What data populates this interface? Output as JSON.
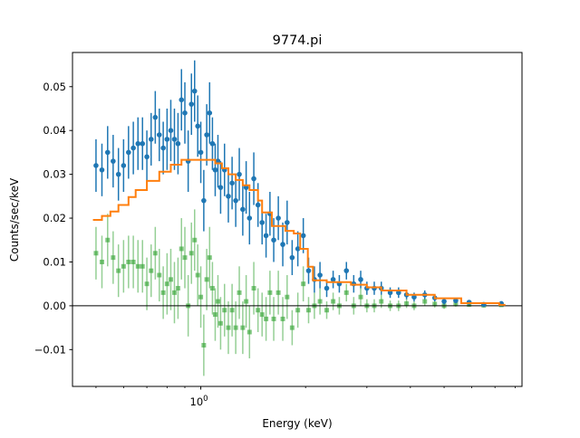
{
  "chart_data": {
    "type": "scatter",
    "title": "9774.pi",
    "xlabel": "Energy (keV)",
    "ylabel": "Counts/sec/keV",
    "xscale": "log",
    "xlim": [
      0.428,
      8.37
    ],
    "ylim": [
      -0.0184,
      0.0578
    ],
    "grid": false,
    "legend": "none",
    "x_tick_labels": [
      {
        "value": 1,
        "label": "10",
        "exp": "0"
      }
    ],
    "x_minor_ticks": [
      0.5,
      0.6,
      0.7,
      0.8,
      0.9,
      2,
      3,
      4,
      5,
      6,
      7,
      8
    ],
    "y_ticks": [
      {
        "value": 0.05,
        "label": "0.05"
      },
      {
        "value": 0.04,
        "label": "0.04"
      },
      {
        "value": 0.03,
        "label": "0.03"
      },
      {
        "value": 0.02,
        "label": "0.02"
      },
      {
        "value": 0.01,
        "label": "0.01"
      },
      {
        "value": 0.0,
        "label": "0.00"
      },
      {
        "value": -0.01,
        "label": "−0.01"
      }
    ],
    "zero_line": 0,
    "colors": {
      "data": "#1f77b4",
      "model": "#ff7f0e",
      "residual": "#2ca02c"
    },
    "columns": [
      "energy",
      "rate",
      "error",
      "residual"
    ],
    "data": [
      [
        0.5,
        0.032,
        0.006,
        0.012
      ],
      [
        0.52,
        0.031,
        0.006,
        0.01
      ],
      [
        0.54,
        0.035,
        0.006,
        0.015
      ],
      [
        0.56,
        0.033,
        0.006,
        0.011
      ],
      [
        0.58,
        0.03,
        0.006,
        0.008
      ],
      [
        0.6,
        0.032,
        0.006,
        0.009
      ],
      [
        0.62,
        0.035,
        0.006,
        0.01
      ],
      [
        0.64,
        0.036,
        0.006,
        0.01
      ],
      [
        0.66,
        0.037,
        0.006,
        0.009
      ],
      [
        0.68,
        0.037,
        0.006,
        0.009
      ],
      [
        0.7,
        0.034,
        0.006,
        0.005
      ],
      [
        0.72,
        0.038,
        0.006,
        0.008
      ],
      [
        0.74,
        0.043,
        0.006,
        0.012
      ],
      [
        0.76,
        0.039,
        0.006,
        0.007
      ],
      [
        0.78,
        0.036,
        0.006,
        0.003
      ],
      [
        0.8,
        0.038,
        0.007,
        0.005
      ],
      [
        0.82,
        0.04,
        0.007,
        0.006
      ],
      [
        0.84,
        0.038,
        0.007,
        0.003
      ],
      [
        0.86,
        0.037,
        0.007,
        0.004
      ],
      [
        0.88,
        0.047,
        0.007,
        0.013
      ],
      [
        0.9,
        0.044,
        0.007,
        0.011
      ],
      [
        0.92,
        0.033,
        0.007,
        0.0
      ],
      [
        0.94,
        0.046,
        0.007,
        0.012
      ],
      [
        0.96,
        0.049,
        0.007,
        0.015
      ],
      [
        0.98,
        0.041,
        0.007,
        0.007
      ],
      [
        1.0,
        0.035,
        0.007,
        0.002
      ],
      [
        1.02,
        0.024,
        0.007,
        -0.009
      ],
      [
        1.04,
        0.039,
        0.007,
        0.006
      ],
      [
        1.06,
        0.044,
        0.007,
        0.011
      ],
      [
        1.08,
        0.037,
        0.006,
        0.004
      ],
      [
        1.1,
        0.031,
        0.006,
        -0.002
      ],
      [
        1.12,
        0.033,
        0.006,
        0.001
      ],
      [
        1.14,
        0.027,
        0.006,
        -0.004
      ],
      [
        1.17,
        0.031,
        0.006,
        -0.001
      ],
      [
        1.2,
        0.025,
        0.006,
        -0.005
      ],
      [
        1.23,
        0.028,
        0.006,
        -0.001
      ],
      [
        1.26,
        0.024,
        0.006,
        -0.005
      ],
      [
        1.29,
        0.03,
        0.006,
        0.003
      ],
      [
        1.32,
        0.022,
        0.006,
        -0.005
      ],
      [
        1.35,
        0.027,
        0.006,
        0.001
      ],
      [
        1.38,
        0.02,
        0.006,
        -0.006
      ],
      [
        1.42,
        0.029,
        0.006,
        0.004
      ],
      [
        1.46,
        0.023,
        0.005,
        -0.001
      ],
      [
        1.5,
        0.019,
        0.005,
        -0.002
      ],
      [
        1.54,
        0.016,
        0.005,
        -0.003
      ],
      [
        1.58,
        0.021,
        0.005,
        0.003
      ],
      [
        1.62,
        0.015,
        0.005,
        -0.003
      ],
      [
        1.67,
        0.02,
        0.005,
        0.003
      ],
      [
        1.72,
        0.014,
        0.005,
        -0.003
      ],
      [
        1.77,
        0.019,
        0.005,
        0.002
      ],
      [
        1.83,
        0.011,
        0.004,
        -0.005
      ],
      [
        1.9,
        0.013,
        0.004,
        -0.001
      ],
      [
        1.97,
        0.016,
        0.004,
        0.005
      ],
      [
        2.04,
        0.008,
        0.003,
        -0.001
      ],
      [
        2.12,
        0.006,
        0.003,
        0.0
      ],
      [
        2.2,
        0.007,
        0.003,
        0.001
      ],
      [
        2.3,
        0.004,
        0.002,
        -0.001
      ],
      [
        2.4,
        0.006,
        0.002,
        0.001
      ],
      [
        2.5,
        0.005,
        0.002,
        0.0
      ],
      [
        2.62,
        0.008,
        0.002,
        0.003
      ],
      [
        2.75,
        0.005,
        0.002,
        0.0
      ],
      [
        2.88,
        0.006,
        0.002,
        0.002
      ],
      [
        3.0,
        0.004,
        0.0015,
        0.0
      ],
      [
        3.15,
        0.004,
        0.0015,
        0.0
      ],
      [
        3.3,
        0.004,
        0.0015,
        0.001
      ],
      [
        3.5,
        0.003,
        0.0012,
        0.0
      ],
      [
        3.7,
        0.003,
        0.0012,
        0.0
      ],
      [
        3.9,
        0.0025,
        0.001,
        0.0005
      ],
      [
        4.1,
        0.002,
        0.001,
        0.0
      ],
      [
        4.4,
        0.0025,
        0.001,
        0.001
      ],
      [
        4.7,
        0.0018,
        0.0008,
        0.0004
      ],
      [
        5.0,
        0.001,
        0.0007,
        0.0
      ],
      [
        5.4,
        0.0012,
        0.0006,
        0.0004
      ],
      [
        5.9,
        0.0008,
        0.0005,
        0.0003
      ],
      [
        6.5,
        0.0003,
        0.0004,
        0.0001
      ],
      [
        7.3,
        0.0005,
        0.0004,
        0.0002
      ]
    ],
    "model": [
      [
        0.49,
        0.0196
      ],
      [
        0.52,
        0.0205
      ],
      [
        0.55,
        0.0215
      ],
      [
        0.58,
        0.023
      ],
      [
        0.62,
        0.0248
      ],
      [
        0.65,
        0.0264
      ],
      [
        0.7,
        0.0285
      ],
      [
        0.76,
        0.0306
      ],
      [
        0.82,
        0.0322
      ],
      [
        0.88,
        0.0333
      ],
      [
        1.04,
        0.0333
      ],
      [
        1.1,
        0.0325
      ],
      [
        1.15,
        0.0314
      ],
      [
        1.2,
        0.03
      ],
      [
        1.26,
        0.0287
      ],
      [
        1.32,
        0.0275
      ],
      [
        1.38,
        0.0264
      ],
      [
        1.46,
        0.024
      ],
      [
        1.5,
        0.0213
      ],
      [
        1.6,
        0.0182
      ],
      [
        1.75,
        0.0171
      ],
      [
        1.85,
        0.0165
      ],
      [
        1.93,
        0.013
      ],
      [
        2.03,
        0.0089
      ],
      [
        2.1,
        0.0058
      ],
      [
        2.3,
        0.0054
      ],
      [
        2.7,
        0.0048
      ],
      [
        3.0,
        0.0042
      ],
      [
        3.3,
        0.0035
      ],
      [
        3.9,
        0.0025
      ],
      [
        4.7,
        0.0017
      ],
      [
        5.6,
        0.0006
      ],
      [
        7.2,
        0.0002
      ],
      [
        7.5,
        0.0002
      ]
    ]
  }
}
